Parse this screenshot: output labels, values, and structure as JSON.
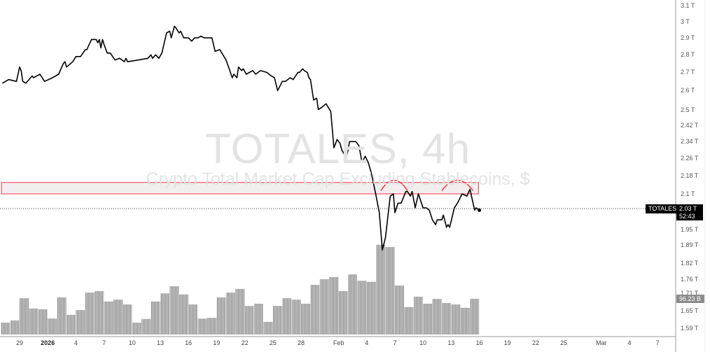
{
  "watermark": {
    "title": "TOTALES, 4h",
    "subtitle": "Crypto Total Market Cap Excluding Stablecoins, $"
  },
  "symbol_label": "TOTALES",
  "last_price_label": "2.03 T",
  "countdown": "52:43",
  "volume_label": "96.23 B",
  "colors": {
    "line": "#000000",
    "volume": "#a3a3a3",
    "zone_border": "#f23645",
    "zone_fill": "#f2eeee",
    "arc": "#f23645"
  },
  "chart_data": {
    "type": "line",
    "y_scale": "log",
    "ylim_T": [
      1.58,
      3.15
    ],
    "grid": false,
    "price_ticks": [
      "3.1 T",
      "3 T",
      "2.9 T",
      "2.8 T",
      "2.7 T",
      "2.6 T",
      "2.5 T",
      "2.42 T",
      "2.34 T",
      "2.26 T",
      "2.18 T",
      "2.1 T",
      "1.95 T",
      "1.89 T",
      "1.82 T",
      "1.76 T",
      "1.71 T",
      "1.65 T",
      "1.59 T"
    ],
    "price_tick_values": [
      3.1,
      3,
      2.9,
      2.8,
      2.7,
      2.6,
      2.5,
      2.42,
      2.34,
      2.26,
      2.18,
      2.1,
      1.95,
      1.89,
      1.82,
      1.76,
      1.71,
      1.65,
      1.59
    ],
    "time_ticks": [
      {
        "label": "29",
        "date": "2025-12-29"
      },
      {
        "label": "2026",
        "date": "2026-01-01",
        "bold": true
      },
      {
        "label": "4",
        "date": "2026-01-04"
      },
      {
        "label": "7",
        "date": "2026-01-07"
      },
      {
        "label": "10",
        "date": "2026-01-10"
      },
      {
        "label": "13",
        "date": "2026-01-13"
      },
      {
        "label": "16",
        "date": "2026-01-16"
      },
      {
        "label": "19",
        "date": "2026-01-19"
      },
      {
        "label": "22",
        "date": "2026-01-22"
      },
      {
        "label": "25",
        "date": "2026-01-25"
      },
      {
        "label": "28",
        "date": "2026-01-28"
      },
      {
        "label": "Feb",
        "date": "2026-02-01"
      },
      {
        "label": "4",
        "date": "2026-02-04"
      },
      {
        "label": "7",
        "date": "2026-02-07"
      },
      {
        "label": "10",
        "date": "2026-02-10"
      },
      {
        "label": "13",
        "date": "2026-02-13"
      },
      {
        "label": "16",
        "date": "2026-02-16"
      },
      {
        "label": "19",
        "date": "2026-02-19"
      },
      {
        "label": "22",
        "date": "2026-02-22"
      },
      {
        "label": "25",
        "date": "2026-02-25"
      },
      {
        "label": "Mar",
        "date": "2026-03-01"
      },
      {
        "label": "4",
        "date": "2026-03-04"
      },
      {
        "label": "7",
        "date": "2026-03-07"
      }
    ],
    "price_series_T": [
      [
        "2025-12-27 04:00",
        2.64
      ],
      [
        "2025-12-27 20:00",
        2.66
      ],
      [
        "2025-12-28 16:00",
        2.65
      ],
      [
        "2025-12-29 00:00",
        2.73
      ],
      [
        "2025-12-29 04:00",
        2.71
      ],
      [
        "2025-12-29 08:00",
        2.65
      ],
      [
        "2025-12-29 16:00",
        2.64
      ],
      [
        "2025-12-30 08:00",
        2.68
      ],
      [
        "2025-12-30 12:00",
        2.67
      ],
      [
        "2025-12-31 04:00",
        2.69
      ],
      [
        "2025-12-31 16:00",
        2.65
      ],
      [
        "2026-01-01 12:00",
        2.67
      ],
      [
        "2026-01-02 04:00",
        2.69
      ],
      [
        "2026-01-02 16:00",
        2.75
      ],
      [
        "2026-01-02 20:00",
        2.76
      ],
      [
        "2026-01-03 00:00",
        2.73
      ],
      [
        "2026-01-03 16:00",
        2.76
      ],
      [
        "2026-01-04 00:00",
        2.79
      ],
      [
        "2026-01-04 12:00",
        2.79
      ],
      [
        "2026-01-05 00:00",
        2.83
      ],
      [
        "2026-01-05 04:00",
        2.83
      ],
      [
        "2026-01-05 16:00",
        2.89
      ],
      [
        "2026-01-06 04:00",
        2.89
      ],
      [
        "2026-01-06 08:00",
        2.87
      ],
      [
        "2026-01-06 12:00",
        2.89
      ],
      [
        "2026-01-06 16:00",
        2.84
      ],
      [
        "2026-01-06 20:00",
        2.89
      ],
      [
        "2026-01-07 00:00",
        2.86
      ],
      [
        "2026-01-07 08:00",
        2.81
      ],
      [
        "2026-01-07 16:00",
        2.81
      ],
      [
        "2026-01-08 04:00",
        2.77
      ],
      [
        "2026-01-08 16:00",
        2.78
      ],
      [
        "2026-01-09 04:00",
        2.76
      ],
      [
        "2026-01-09 08:00",
        2.78
      ],
      [
        "2026-01-09 12:00",
        2.76
      ],
      [
        "2026-01-10 16:00",
        2.77
      ],
      [
        "2026-01-11 16:00",
        2.78
      ],
      [
        "2026-01-12 00:00",
        2.8
      ],
      [
        "2026-01-12 04:00",
        2.78
      ],
      [
        "2026-01-12 12:00",
        2.8
      ],
      [
        "2026-01-12 20:00",
        2.78
      ],
      [
        "2026-01-13 04:00",
        2.81
      ],
      [
        "2026-01-13 16:00",
        2.93
      ],
      [
        "2026-01-14 00:00",
        2.94
      ],
      [
        "2026-01-14 04:00",
        2.9
      ],
      [
        "2026-01-14 12:00",
        2.97
      ],
      [
        "2026-01-14 16:00",
        2.96
      ],
      [
        "2026-01-15 00:00",
        2.93
      ],
      [
        "2026-01-15 04:00",
        2.94
      ],
      [
        "2026-01-15 12:00",
        2.9
      ],
      [
        "2026-01-16 00:00",
        2.9
      ],
      [
        "2026-01-16 08:00",
        2.88
      ],
      [
        "2026-01-16 16:00",
        2.9
      ],
      [
        "2026-01-17 00:00",
        2.9
      ],
      [
        "2026-01-17 08:00",
        2.91
      ],
      [
        "2026-01-17 16:00",
        2.9
      ],
      [
        "2026-01-18 12:00",
        2.9
      ],
      [
        "2026-01-18 20:00",
        2.82
      ],
      [
        "2026-01-19 08:00",
        2.83
      ],
      [
        "2026-01-20 00:00",
        2.77
      ],
      [
        "2026-01-20 08:00",
        2.72
      ],
      [
        "2026-01-20 16:00",
        2.67
      ],
      [
        "2026-01-20 20:00",
        2.69
      ],
      [
        "2026-01-21 04:00",
        2.67
      ],
      [
        "2026-01-21 08:00",
        2.73
      ],
      [
        "2026-01-21 16:00",
        2.71
      ],
      [
        "2026-01-21 20:00",
        2.72
      ],
      [
        "2026-01-22 04:00",
        2.69
      ],
      [
        "2026-01-22 20:00",
        2.71
      ],
      [
        "2026-01-23 04:00",
        2.69
      ],
      [
        "2026-01-23 16:00",
        2.71
      ],
      [
        "2026-01-24 08:00",
        2.7
      ],
      [
        "2026-01-24 20:00",
        2.68
      ],
      [
        "2026-01-25 04:00",
        2.67
      ],
      [
        "2026-01-25 12:00",
        2.6
      ],
      [
        "2026-01-26 00:00",
        2.65
      ],
      [
        "2026-01-26 08:00",
        2.65
      ],
      [
        "2026-01-26 20:00",
        2.67
      ],
      [
        "2026-01-27 04:00",
        2.66
      ],
      [
        "2026-01-27 16:00",
        2.7
      ],
      [
        "2026-01-27 20:00",
        2.7
      ],
      [
        "2026-01-28 04:00",
        2.72
      ],
      [
        "2026-01-28 08:00",
        2.71
      ],
      [
        "2026-01-28 16:00",
        2.7
      ],
      [
        "2026-01-28 20:00",
        2.67
      ],
      [
        "2026-01-29 00:00",
        2.66
      ],
      [
        "2026-01-29 08:00",
        2.55
      ],
      [
        "2026-01-29 16:00",
        2.56
      ],
      [
        "2026-01-29 20:00",
        2.5
      ],
      [
        "2026-01-30 04:00",
        2.51
      ],
      [
        "2026-01-30 16:00",
        2.53
      ],
      [
        "2026-01-31 04:00",
        2.49
      ],
      [
        "2026-01-31 12:00",
        2.31
      ],
      [
        "2026-01-31 20:00",
        2.35
      ],
      [
        "2026-02-01 04:00",
        2.33
      ],
      [
        "2026-02-01 08:00",
        2.3
      ],
      [
        "2026-02-01 20:00",
        2.26
      ],
      [
        "2026-02-02 04:00",
        2.34
      ],
      [
        "2026-02-02 20:00",
        2.34
      ],
      [
        "2026-02-03 04:00",
        2.32
      ],
      [
        "2026-02-03 12:00",
        2.24
      ],
      [
        "2026-02-03 20:00",
        2.27
      ],
      [
        "2026-02-04 04:00",
        2.24
      ],
      [
        "2026-02-04 12:00",
        2.19
      ],
      [
        "2026-02-05 00:00",
        2.09
      ],
      [
        "2026-02-05 08:00",
        2.02
      ],
      [
        "2026-02-05 16:00",
        1.87
      ],
      [
        "2026-02-06 00:00",
        1.92
      ],
      [
        "2026-02-06 12:00",
        2.09
      ],
      [
        "2026-02-06 20:00",
        2.1
      ],
      [
        "2026-02-07 00:00",
        2.02
      ],
      [
        "2026-02-07 08:00",
        2.06
      ],
      [
        "2026-02-07 16:00",
        2.06
      ],
      [
        "2026-02-08 04:00",
        2.11
      ],
      [
        "2026-02-08 08:00",
        2.11
      ],
      [
        "2026-02-08 16:00",
        2.09
      ],
      [
        "2026-02-08 20:00",
        2.11
      ],
      [
        "2026-02-09 04:00",
        2.04
      ],
      [
        "2026-02-09 12:00",
        2.1
      ],
      [
        "2026-02-10 00:00",
        2.04
      ],
      [
        "2026-02-10 08:00",
        2.04
      ],
      [
        "2026-02-10 16:00",
        2.03
      ],
      [
        "2026-02-11 00:00",
        1.99
      ],
      [
        "2026-02-11 08:00",
        1.97
      ],
      [
        "2026-02-11 12:00",
        1.99
      ],
      [
        "2026-02-12 00:00",
        1.99
      ],
      [
        "2026-02-12 04:00",
        2.01
      ],
      [
        "2026-02-12 12:00",
        1.96
      ],
      [
        "2026-02-12 16:00",
        1.97
      ],
      [
        "2026-02-12 20:00",
        1.96
      ],
      [
        "2026-02-13 08:00",
        2.04
      ],
      [
        "2026-02-13 16:00",
        2.06
      ],
      [
        "2026-02-14 04:00",
        2.1
      ],
      [
        "2026-02-14 16:00",
        2.09
      ],
      [
        "2026-02-15 00:00",
        2.12
      ],
      [
        "2026-02-15 12:00",
        2.03
      ],
      [
        "2026-02-15 16:00",
        2.04
      ],
      [
        "2026-02-16 00:00",
        2.03
      ]
    ],
    "volume_daily_B": [
      [
        "2025-12-27",
        32
      ],
      [
        "2025-12-28",
        38
      ],
      [
        "2025-12-29",
        98
      ],
      [
        "2025-12-30",
        70
      ],
      [
        "2025-12-31",
        68
      ],
      [
        "2026-01-01",
        43
      ],
      [
        "2026-01-02",
        100
      ],
      [
        "2026-01-03",
        53
      ],
      [
        "2026-01-04",
        66
      ],
      [
        "2026-01-05",
        113
      ],
      [
        "2026-01-06",
        117
      ],
      [
        "2026-01-07",
        89
      ],
      [
        "2026-01-08",
        94
      ],
      [
        "2026-01-09",
        81
      ],
      [
        "2026-01-10",
        32
      ],
      [
        "2026-01-11",
        42
      ],
      [
        "2026-01-12",
        89
      ],
      [
        "2026-01-13",
        111
      ],
      [
        "2026-01-14",
        130
      ],
      [
        "2026-01-15",
        108
      ],
      [
        "2026-01-16",
        81
      ],
      [
        "2026-01-17",
        43
      ],
      [
        "2026-01-18",
        45
      ],
      [
        "2026-01-19",
        100
      ],
      [
        "2026-01-20",
        113
      ],
      [
        "2026-01-21",
        123
      ],
      [
        "2026-01-22",
        77
      ],
      [
        "2026-01-23",
        83
      ],
      [
        "2026-01-24",
        34
      ],
      [
        "2026-01-25",
        77
      ],
      [
        "2026-01-26",
        98
      ],
      [
        "2026-01-27",
        94
      ],
      [
        "2026-01-28",
        83
      ],
      [
        "2026-01-29",
        134
      ],
      [
        "2026-01-30",
        149
      ],
      [
        "2026-01-31",
        155
      ],
      [
        "2026-02-01",
        117
      ],
      [
        "2026-02-02",
        162
      ],
      [
        "2026-02-03",
        145
      ],
      [
        "2026-02-04",
        142
      ],
      [
        "2026-02-05",
        242
      ],
      [
        "2026-02-06",
        236
      ],
      [
        "2026-02-07",
        132
      ],
      [
        "2026-02-08",
        74
      ],
      [
        "2026-02-09",
        102
      ],
      [
        "2026-02-10",
        83
      ],
      [
        "2026-02-11",
        96
      ],
      [
        "2026-02-12",
        85
      ],
      [
        "2026-02-13",
        81
      ],
      [
        "2026-02-14",
        72
      ],
      [
        "2026-02-15",
        96.23
      ]
    ],
    "last_price_T": 2.03,
    "last_volume_B": 96.23,
    "drawings": {
      "resistance_zone_T": {
        "from": "2025-12-27",
        "to": "2026-02-15 20:00",
        "low": 2.1,
        "high": 2.15
      },
      "arcs": [
        {
          "from": "2026-02-05 12:00",
          "to": "2026-02-08 08:00",
          "peak_T": 2.16
        },
        {
          "from": "2026-02-12 00:00",
          "to": "2026-02-15 08:00",
          "peak_T": 2.16
        }
      ]
    }
  }
}
